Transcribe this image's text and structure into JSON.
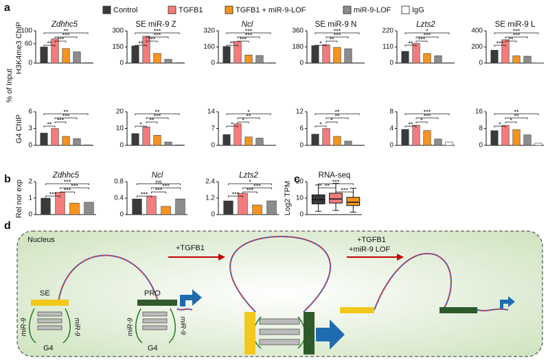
{
  "panel_labels": [
    "a",
    "b",
    "c",
    "d"
  ],
  "legend": {
    "names": [
      "Control",
      "TGFB1",
      "TGFB1 + miR-9-LOF",
      "miR-9-LOF",
      "IgG"
    ],
    "colors": [
      "#3a3a3a",
      "#f47c7c",
      "#f7941d",
      "#8c8c8c",
      "#ffffff"
    ]
  },
  "row_labels": [
    "% of Input",
    "H3K4me3 ChIP",
    "G4 ChIP",
    "Rel nor exp"
  ],
  "chart_data": [
    {
      "type": "bar",
      "title": "Zdhhc5",
      "title_style": "italic",
      "values": [
        50,
        75,
        45,
        35,
        1
      ],
      "ylim": [
        0,
        100
      ],
      "yticks": [
        0,
        60,
        100
      ],
      "significance": [
        {
          "pair": [
            0,
            4
          ],
          "label": "**"
        },
        {
          "pair": [
            1,
            3
          ],
          "label": "***"
        },
        {
          "pair": [
            1,
            2
          ],
          "label": "***"
        },
        {
          "pair": [
            0,
            1
          ],
          "label": "**"
        }
      ]
    },
    {
      "type": "bar",
      "title": "SE miR-9 Z",
      "title_style": "normal",
      "values": [
        160,
        250,
        90,
        35,
        3
      ],
      "ylim": [
        0,
        300
      ],
      "yticks": [
        0,
        150,
        300
      ],
      "significance": [
        {
          "pair": [
            0,
            4
          ],
          "label": "***"
        },
        {
          "pair": [
            1,
            3
          ],
          "label": "***"
        },
        {
          "pair": [
            1,
            2
          ],
          "label": "***"
        },
        {
          "pair": [
            0,
            1
          ],
          "label": "**"
        }
      ]
    },
    {
      "type": "bar",
      "title": "Ncl",
      "title_style": "italic",
      "values": [
        165,
        215,
        80,
        75,
        3
      ],
      "ylim": [
        0,
        320
      ],
      "yticks": [
        0,
        160,
        320
      ],
      "significance": [
        {
          "pair": [
            0,
            4
          ],
          "label": "***"
        },
        {
          "pair": [
            1,
            3
          ],
          "label": "***"
        },
        {
          "pair": [
            1,
            2
          ],
          "label": "***"
        },
        {
          "pair": [
            0,
            1
          ],
          "label": "**"
        }
      ]
    },
    {
      "type": "bar",
      "title": "SE miR-9 N",
      "title_style": "normal",
      "values": [
        195,
        205,
        175,
        160,
        3
      ],
      "ylim": [
        0,
        360
      ],
      "yticks": [
        0,
        180,
        360
      ],
      "significance": [
        {
          "pair": [
            0,
            4
          ],
          "label": "***"
        },
        {
          "pair": [
            1,
            3
          ],
          "label": "***"
        },
        {
          "pair": [
            1,
            2
          ],
          "label": "**"
        },
        {
          "pair": [
            0,
            1
          ],
          "label": "*"
        }
      ]
    },
    {
      "type": "bar",
      "title": "Lzts2",
      "title_style": "italic",
      "values": [
        80,
        135,
        65,
        50,
        2
      ],
      "ylim": [
        0,
        220
      ],
      "yticks": [
        0,
        110,
        220
      ],
      "significance": [
        {
          "pair": [
            0,
            4
          ],
          "label": "*"
        },
        {
          "pair": [
            1,
            3
          ],
          "label": "***"
        },
        {
          "pair": [
            1,
            2
          ],
          "label": "***"
        },
        {
          "pair": [
            0,
            1
          ],
          "label": "**"
        }
      ]
    },
    {
      "type": "bar",
      "title": "SE miR-9 L",
      "title_style": "normal",
      "values": [
        160,
        290,
        90,
        85,
        2
      ],
      "ylim": [
        0,
        400
      ],
      "yticks": [
        0,
        200,
        400
      ],
      "significance": [
        {
          "pair": [
            0,
            4
          ],
          "label": "***"
        },
        {
          "pair": [
            1,
            3
          ],
          "label": "***"
        },
        {
          "pair": [
            1,
            2
          ],
          "label": "**"
        },
        {
          "pair": [
            0,
            1
          ],
          "label": "***"
        }
      ]
    },
    {
      "type": "bar",
      "title": null,
      "title_style": "normal",
      "values": [
        2.2,
        3.0,
        1.6,
        1.2,
        0.1
      ],
      "ylim": [
        0,
        6
      ],
      "yticks": [
        0,
        3,
        6
      ],
      "significance": [
        {
          "pair": [
            0,
            4
          ],
          "label": "**"
        },
        {
          "pair": [
            1,
            3
          ],
          "label": "***"
        },
        {
          "pair": [
            1,
            2
          ],
          "label": "***"
        },
        {
          "pair": [
            0,
            1
          ],
          "label": "**"
        }
      ]
    },
    {
      "type": "bar",
      "title": null,
      "title_style": "normal",
      "values": [
        7,
        11,
        6,
        2,
        0.3
      ],
      "ylim": [
        0,
        20
      ],
      "yticks": [
        0,
        10,
        20
      ],
      "significance": [
        {
          "pair": [
            0,
            4
          ],
          "label": "**"
        },
        {
          "pair": [
            1,
            3
          ],
          "label": "***"
        },
        {
          "pair": [
            1,
            2
          ],
          "label": "**"
        },
        {
          "pair": [
            0,
            1
          ],
          "label": "*"
        }
      ]
    },
    {
      "type": "bar",
      "title": null,
      "title_style": "normal",
      "values": [
        4.5,
        9,
        3.5,
        3,
        0.1
      ],
      "ylim": [
        0,
        14
      ],
      "yticks": [
        0,
        7,
        14
      ],
      "significance": [
        {
          "pair": [
            0,
            4
          ],
          "label": "*"
        },
        {
          "pair": [
            1,
            3
          ],
          "label": "**"
        },
        {
          "pair": [
            1,
            2
          ],
          "label": "*"
        },
        {
          "pair": [
            0,
            1
          ],
          "label": "*"
        }
      ]
    },
    {
      "type": "bar",
      "title": null,
      "title_style": "normal",
      "values": [
        4,
        6,
        3.2,
        1.5,
        0.1
      ],
      "ylim": [
        0,
        12
      ],
      "yticks": [
        0,
        6,
        12
      ],
      "significance": [
        {
          "pair": [
            0,
            4
          ],
          "label": "**"
        },
        {
          "pair": [
            1,
            3
          ],
          "label": "**"
        },
        {
          "pair": [
            1,
            2
          ],
          "label": "*"
        },
        {
          "pair": [
            0,
            1
          ],
          "label": "*"
        }
      ]
    },
    {
      "type": "bar",
      "title": null,
      "title_style": "normal",
      "values": [
        3.8,
        4.8,
        3.5,
        1.5,
        0.8
      ],
      "ylim": [
        0,
        8
      ],
      "yticks": [
        0,
        4,
        8
      ],
      "significance": [
        {
          "pair": [
            0,
            4
          ],
          "label": "***"
        },
        {
          "pair": [
            1,
            3
          ],
          "label": "***"
        },
        {
          "pair": [
            1,
            2
          ],
          "label": "*"
        },
        {
          "pair": [
            0,
            1
          ],
          "label": "**"
        }
      ]
    },
    {
      "type": "bar",
      "title": null,
      "title_style": "normal",
      "values": [
        7,
        9.5,
        7.5,
        5,
        1
      ],
      "ylim": [
        0,
        16
      ],
      "yticks": [
        0,
        8,
        16
      ],
      "significance": [
        {
          "pair": [
            0,
            4
          ],
          "label": "**"
        },
        {
          "pair": [
            1,
            3
          ],
          "label": "**"
        },
        {
          "pair": [
            1,
            2
          ],
          "label": "*"
        },
        {
          "pair": [
            0,
            1
          ],
          "label": "*"
        }
      ]
    },
    {
      "type": "bar",
      "title": "Zdhhc5",
      "title_style": "italic",
      "values": [
        1.0,
        1.35,
        0.7,
        0.75
      ],
      "ylim": [
        0,
        2
      ],
      "yticks": [
        0,
        1,
        2
      ],
      "significance": [
        {
          "pair": [
            0,
            3
          ],
          "label": "***"
        },
        {
          "pair": [
            1,
            3
          ],
          "label": "***"
        },
        {
          "pair": [
            1,
            2
          ],
          "label": "***"
        },
        {
          "pair": [
            0,
            1
          ],
          "label": "***"
        }
      ]
    },
    {
      "type": "bar",
      "title": "Ncl",
      "title_style": "italic",
      "values": [
        0.38,
        0.45,
        0.2,
        0.38
      ],
      "ylim": [
        0,
        0.8
      ],
      "yticks": [
        0,
        0.4,
        0.8
      ],
      "significance": [
        {
          "pair": [
            0,
            3
          ],
          "label": "ns"
        },
        {
          "pair": [
            1,
            3
          ],
          "label": "***"
        },
        {
          "pair": [
            1,
            2
          ],
          "label": "***"
        },
        {
          "pair": [
            0,
            1
          ],
          "label": "***"
        }
      ]
    },
    {
      "type": "bar",
      "title": "Lzts2",
      "title_style": "italic",
      "values": [
        1.0,
        1.55,
        0.7,
        1.0
      ],
      "ylim": [
        0,
        2.4
      ],
      "yticks": [
        0,
        1.2,
        2.4
      ],
      "significance": [
        {
          "pair": [
            0,
            3
          ],
          "label": "*"
        },
        {
          "pair": [
            1,
            3
          ],
          "label": "***"
        },
        {
          "pair": [
            1,
            2
          ],
          "label": "***"
        },
        {
          "pair": [
            0,
            1
          ],
          "label": "***"
        }
      ]
    },
    {
      "type": "box",
      "title": "RNA-seq",
      "title_style": "normal",
      "ylabel": "Log2 TPM",
      "ylim": [
        0,
        20
      ],
      "yticks": [
        0,
        10,
        20
      ],
      "boxes": [
        {
          "min": 2,
          "q1": 6.5,
          "median": 9,
          "q3": 12,
          "max": 18
        },
        {
          "min": 2.5,
          "q1": 7,
          "median": 9.5,
          "q3": 13,
          "max": 19
        },
        {
          "min": 1.5,
          "q1": 5.5,
          "median": 7.5,
          "q3": 10.5,
          "max": 16
        }
      ],
      "significance": [
        {
          "pair": [
            0,
            2
          ],
          "label": "***"
        },
        {
          "pair": [
            0,
            1
          ],
          "label": "**"
        },
        {
          "pair": [
            1,
            2
          ],
          "label": "***"
        }
      ]
    }
  ],
  "diagram": {
    "nucleus": "Nucleus",
    "step1": "+TGFB1",
    "step2": [
      "+TGFB1",
      "+miR-9 LOF"
    ],
    "se": "SE",
    "pro": "PRO",
    "mir9": "miR-9",
    "g4": "G4"
  }
}
